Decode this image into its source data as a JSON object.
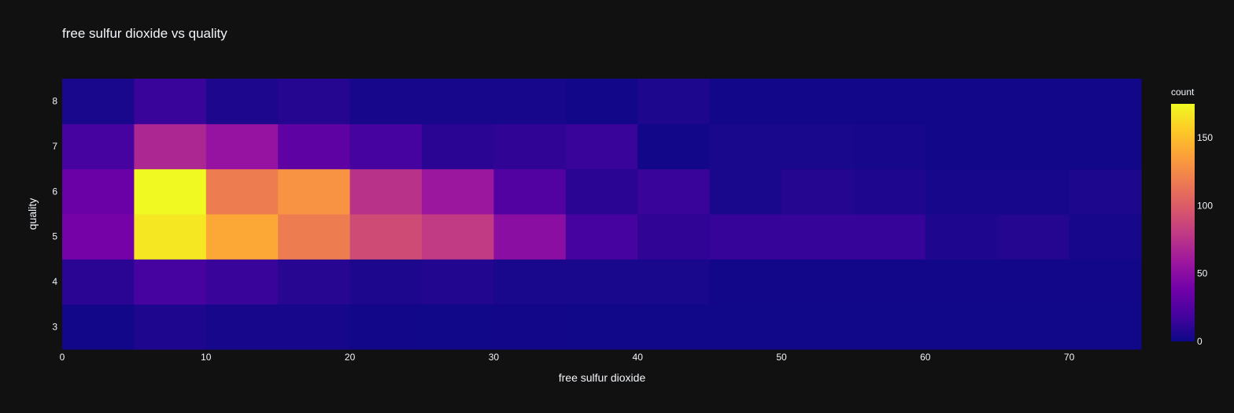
{
  "chart_data": {
    "type": "heatmap",
    "title": "free sulfur dioxide vs quality",
    "xlabel": "free sulfur dioxide",
    "ylabel": "quality",
    "xlim": [
      0,
      75
    ],
    "bin_width": 5,
    "x_ticks": [
      0,
      10,
      20,
      30,
      40,
      50,
      60,
      70
    ],
    "y_categories": [
      3,
      4,
      5,
      6,
      7,
      8
    ],
    "colorbar": {
      "title": "count",
      "range": [
        0,
        175
      ],
      "ticks": [
        0,
        50,
        100,
        150
      ]
    },
    "colorscale": [
      "#0d0887",
      "#46039f",
      "#7201a8",
      "#9c179e",
      "#bd3786",
      "#d8576b",
      "#ed7953",
      "#fb9f3a",
      "#fdca26",
      "#f0f921"
    ],
    "bins_x_start": [
      0,
      5,
      10,
      15,
      20,
      25,
      30,
      35,
      40,
      45,
      50,
      55,
      60,
      65,
      70
    ],
    "counts": {
      "3": [
        2,
        6,
        3,
        3,
        2,
        1,
        2,
        1,
        1,
        1,
        1,
        1,
        1,
        1,
        1
      ],
      "4": [
        10,
        20,
        15,
        9,
        5,
        7,
        4,
        4,
        4,
        2,
        2,
        2,
        2,
        2,
        2
      ],
      "5": [
        40,
        168,
        140,
        118,
        90,
        80,
        50,
        20,
        12,
        14,
        14,
        14,
        6,
        8,
        3
      ],
      "6": [
        35,
        175,
        118,
        130,
        75,
        58,
        25,
        10,
        15,
        4,
        8,
        6,
        3,
        3,
        5
      ],
      "7": [
        20,
        68,
        55,
        30,
        20,
        10,
        12,
        15,
        2,
        4,
        4,
        3,
        2,
        2,
        2
      ],
      "8": [
        4,
        15,
        5,
        8,
        3,
        3,
        3,
        2,
        5,
        2,
        2,
        2,
        2,
        2,
        2
      ]
    }
  }
}
